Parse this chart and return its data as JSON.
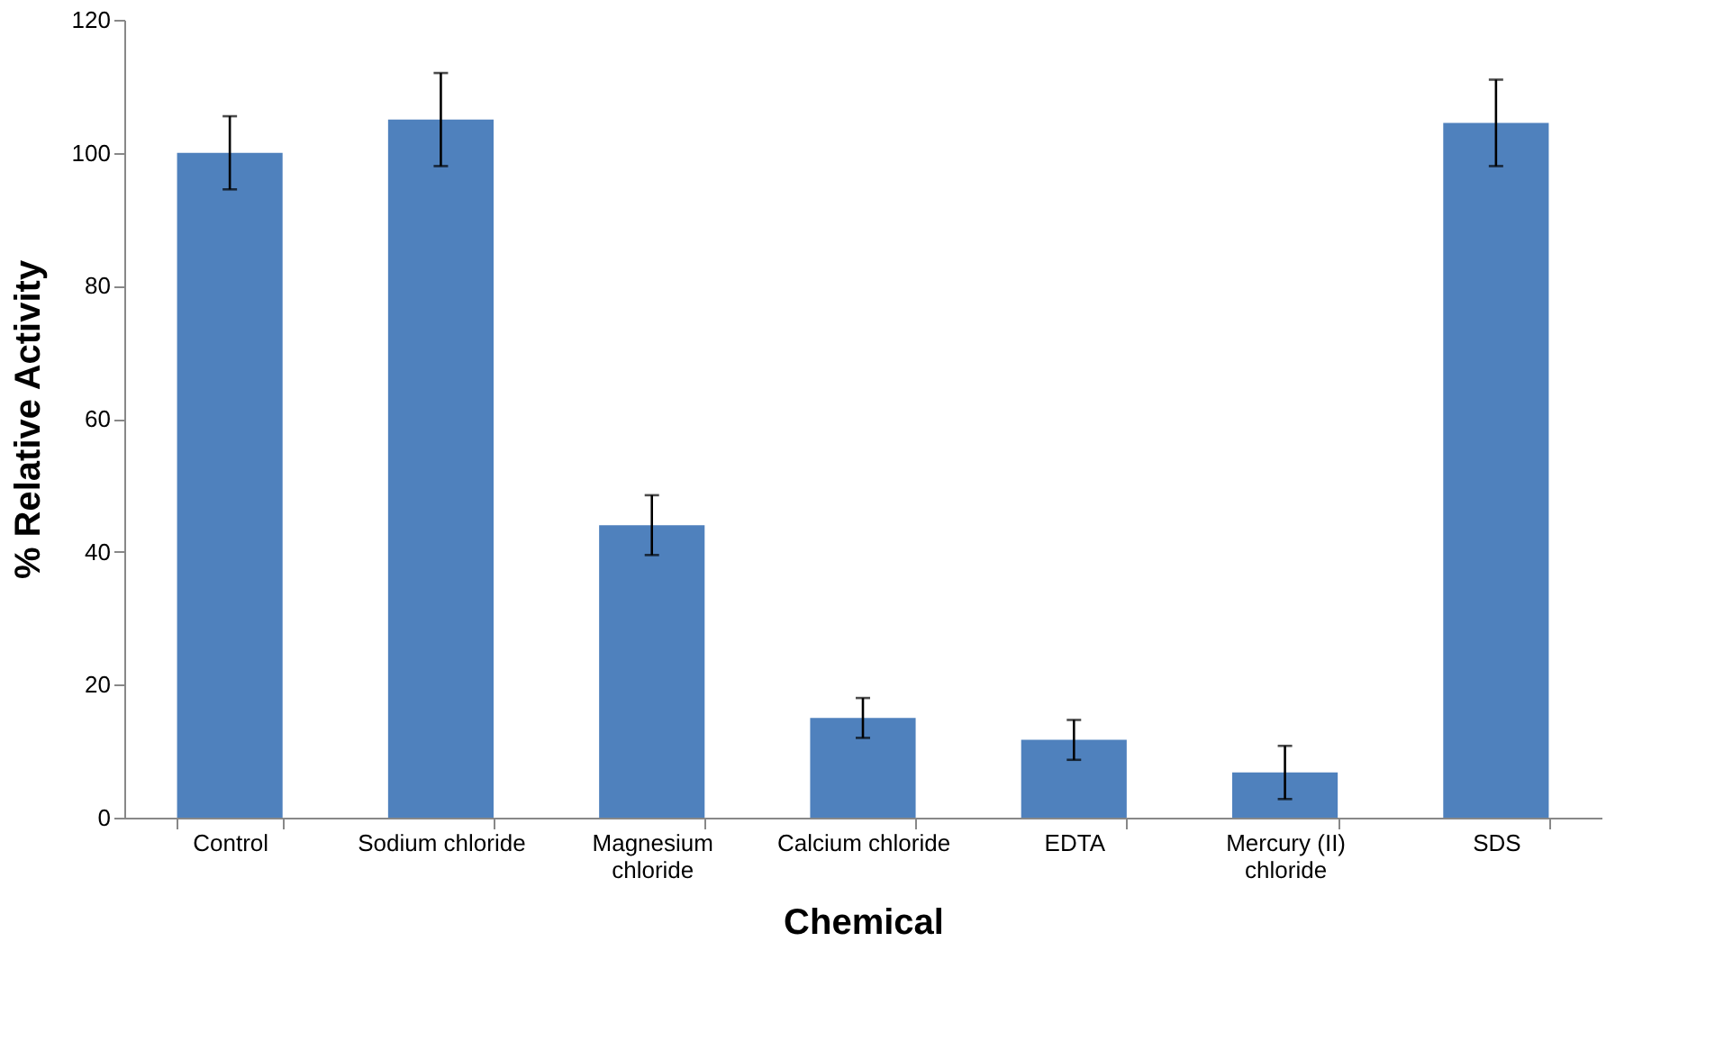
{
  "chart_data": {
    "type": "bar",
    "xlabel": "Chemical",
    "ylabel": "% Relative Activity",
    "categories": [
      "Control",
      "Sodium chloride",
      "Magnesium chloride",
      "Calcium chloride",
      "EDTA",
      "Mercury (II) chloride",
      "SDS"
    ],
    "values": [
      100,
      105,
      44,
      15,
      11.7,
      6.8,
      104.5
    ],
    "errors": [
      5.5,
      7,
      4.5,
      3,
      3,
      4,
      6.5
    ],
    "color": "#4f81bd",
    "ylim": [
      0,
      120
    ],
    "yticks": [
      0,
      20,
      40,
      60,
      80,
      100,
      120
    ],
    "grid": false
  }
}
